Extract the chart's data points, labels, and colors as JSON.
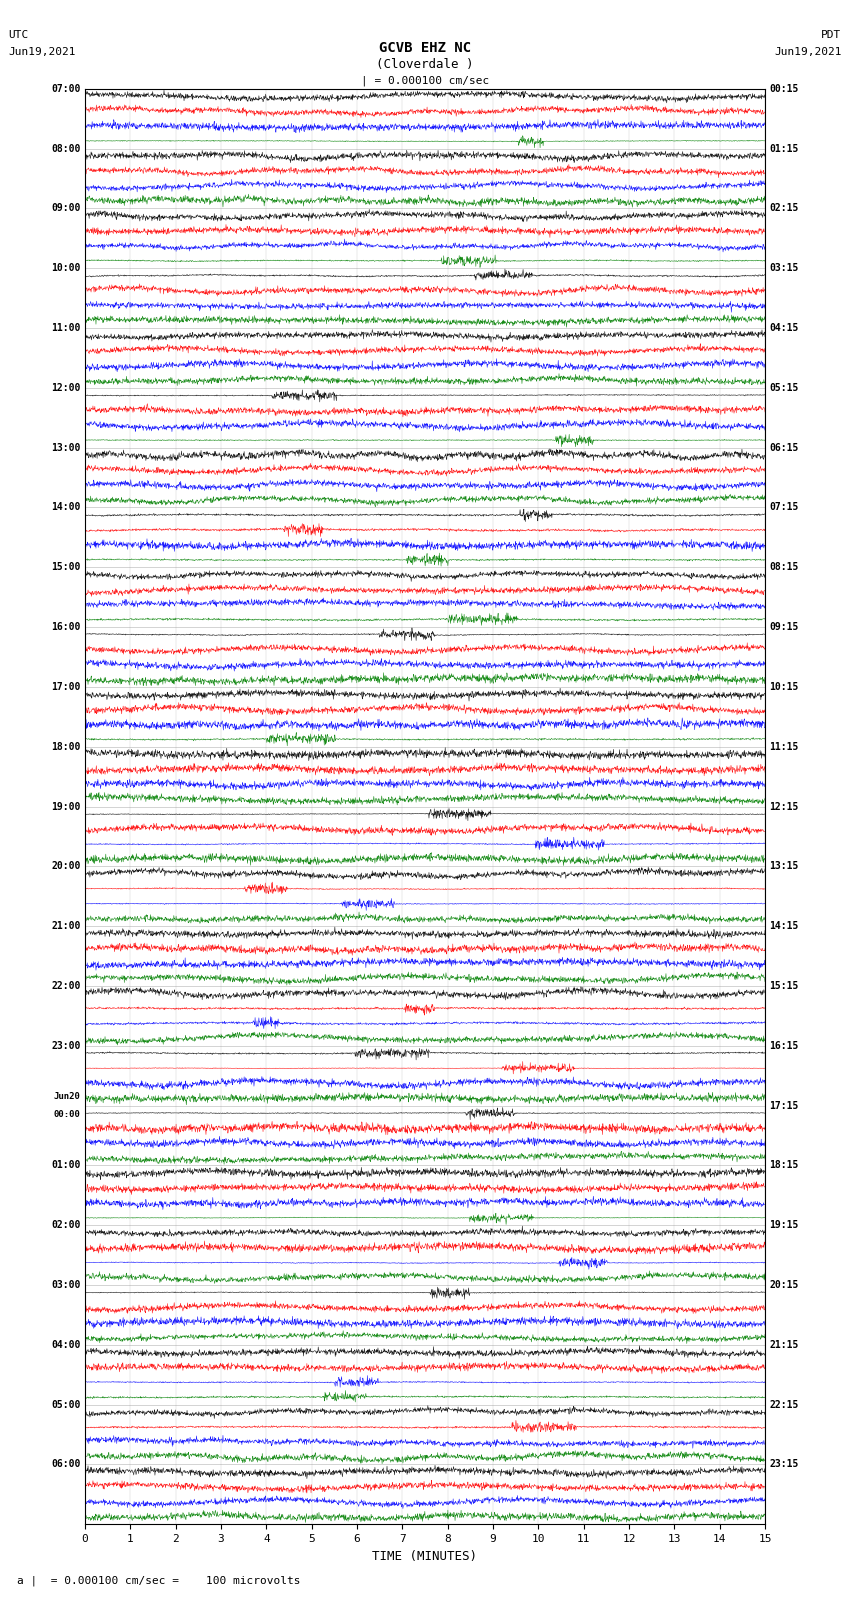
{
  "title_line1": "GCVB EHZ NC",
  "title_line2": "(Cloverdale )",
  "scale_label": "| = 0.000100 cm/sec",
  "left_label_top": "UTC",
  "left_label_bot": "Jun19,2021",
  "right_label_top": "PDT",
  "right_label_bot": "Jun19,2021",
  "xlabel": "TIME (MINUTES)",
  "footnote": "a |  = 0.000100 cm/sec =    100 microvolts",
  "utc_labels": [
    "07:00",
    "08:00",
    "09:00",
    "10:00",
    "11:00",
    "12:00",
    "13:00",
    "14:00",
    "15:00",
    "16:00",
    "17:00",
    "18:00",
    "19:00",
    "20:00",
    "21:00",
    "22:00",
    "23:00",
    "Jun20\n00:00",
    "01:00",
    "02:00",
    "03:00",
    "04:00",
    "05:00",
    "06:00"
  ],
  "pdt_labels": [
    "00:15",
    "01:15",
    "02:15",
    "03:15",
    "04:15",
    "05:15",
    "06:15",
    "07:15",
    "08:15",
    "09:15",
    "10:15",
    "11:15",
    "12:15",
    "13:15",
    "14:15",
    "15:15",
    "16:15",
    "17:15",
    "18:15",
    "19:15",
    "20:15",
    "21:15",
    "22:15",
    "23:15"
  ],
  "num_rows": 24,
  "traces_per_row": 4,
  "colors": [
    "black",
    "red",
    "blue",
    "green"
  ],
  "bg_color": "#ffffff",
  "noise_seed": 42,
  "fig_width": 8.5,
  "fig_height": 16.13,
  "dpi": 100,
  "xmin": 0,
  "xmax": 15,
  "xticks": [
    0,
    1,
    2,
    3,
    4,
    5,
    6,
    7,
    8,
    9,
    10,
    11,
    12,
    13,
    14,
    15
  ]
}
